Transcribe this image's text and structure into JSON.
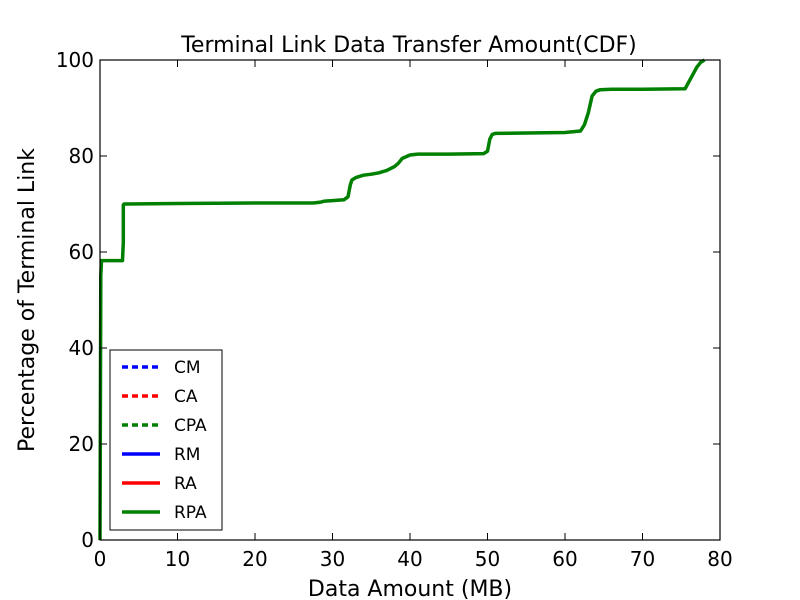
{
  "chart_data": {
    "type": "line",
    "title": "Terminal Link Data Transfer Amount(CDF)",
    "xlabel": "Data Amount (MB)",
    "ylabel": "Percentage of Terminal Link",
    "xlim": [
      0,
      80
    ],
    "ylim": [
      0,
      100
    ],
    "xticks": [
      "0",
      "10",
      "20",
      "30",
      "40",
      "50",
      "60",
      "70",
      "80"
    ],
    "yticks": [
      "0",
      "20",
      "40",
      "60",
      "80",
      "100"
    ],
    "grid": false,
    "legend_position": "lower-left",
    "series": [
      {
        "name": "CM",
        "style": "dashed",
        "color": "#0000ff",
        "x": [
          0
        ],
        "y": [
          0
        ]
      },
      {
        "name": "CA",
        "style": "dashed",
        "color": "#ff0000",
        "x": [
          0
        ],
        "y": [
          0
        ]
      },
      {
        "name": "CPA",
        "style": "dashed",
        "color": "#008000",
        "x": [
          0
        ],
        "y": [
          0
        ]
      },
      {
        "name": "RM",
        "style": "solid",
        "color": "#0000ff",
        "x": [
          0
        ],
        "y": [
          0
        ]
      },
      {
        "name": "RA",
        "style": "solid",
        "color": "#ff0000",
        "x": [
          0
        ],
        "y": [
          0
        ]
      },
      {
        "name": "RPA",
        "style": "solid",
        "color": "#008000",
        "x": [
          0,
          0.1,
          0.2,
          2.9,
          3.0,
          3.0,
          3.1,
          10,
          20,
          27.5,
          28.5,
          29,
          30,
          31.5,
          32,
          32.3,
          32.5,
          33,
          34,
          35,
          36,
          37,
          38,
          38.5,
          39,
          40,
          41,
          45,
          49.5,
          50,
          50.3,
          50.6,
          51,
          55,
          60,
          62,
          62.5,
          63,
          63.5,
          64,
          64.5,
          66,
          70,
          75.5,
          76,
          76.5,
          77,
          77.5,
          78
        ],
        "y": [
          0,
          55,
          58.2,
          58.2,
          62,
          69.8,
          70,
          70.1,
          70.2,
          70.2,
          70.4,
          70.6,
          70.7,
          70.9,
          71.5,
          74,
          75,
          75.5,
          76,
          76.2,
          76.5,
          77,
          77.8,
          78.5,
          79.5,
          80.2,
          80.4,
          80.4,
          80.5,
          81,
          83.5,
          84.5,
          84.7,
          84.8,
          84.9,
          85.2,
          86.5,
          89,
          92.5,
          93.5,
          93.8,
          93.9,
          93.9,
          94,
          95.5,
          97,
          98.5,
          99.5,
          100
        ]
      }
    ]
  }
}
